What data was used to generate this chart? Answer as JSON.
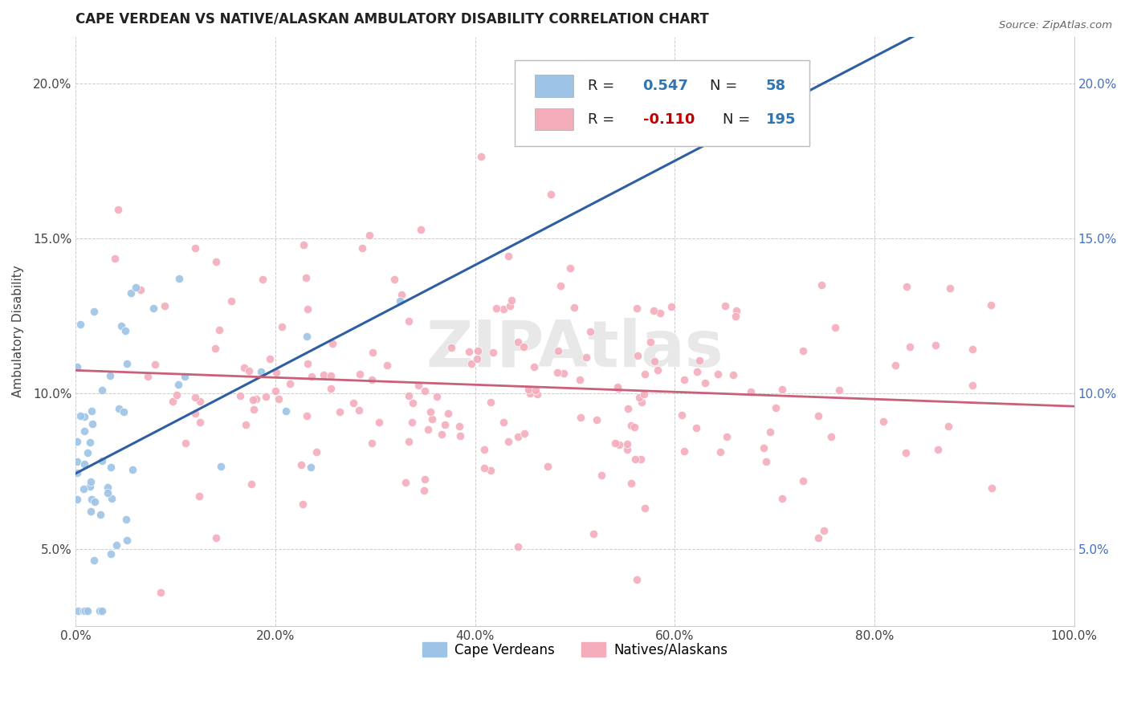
{
  "title": "CAPE VERDEAN VS NATIVE/ALASKAN AMBULATORY DISABILITY CORRELATION CHART",
  "source_text": "Source: ZipAtlas.com",
  "ylabel": "Ambulatory Disability",
  "xlim": [
    0.0,
    1.0
  ],
  "ylim": [
    0.025,
    0.215
  ],
  "x_ticks": [
    0.0,
    0.2,
    0.4,
    0.6,
    0.8,
    1.0
  ],
  "x_tick_labels": [
    "0.0%",
    "20.0%",
    "40.0%",
    "60.0%",
    "80.0%",
    "100.0%"
  ],
  "y_ticks": [
    0.05,
    0.1,
    0.15,
    0.2
  ],
  "y_tick_labels": [
    "5.0%",
    "10.0%",
    "15.0%",
    "20.0%"
  ],
  "blue_color": "#9DC3E6",
  "pink_color": "#F4ACBB",
  "blue_line_color": "#2E5FA3",
  "pink_line_color": "#C9607A",
  "blue_r": 0.547,
  "blue_n": 58,
  "pink_r": -0.11,
  "pink_n": 195,
  "watermark": "ZIPAtlas",
  "background_color": "#FFFFFF",
  "grid_color": "#CCCCCC",
  "legend_blue_r_color": "#2E75B6",
  "legend_pink_r_color": "#C00000",
  "legend_n_color": "#2E75B6"
}
